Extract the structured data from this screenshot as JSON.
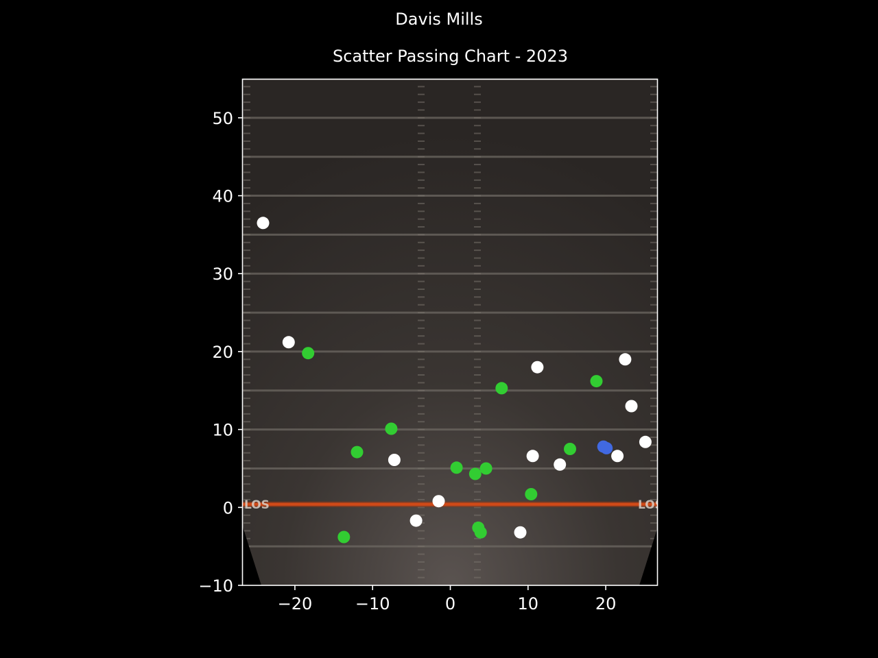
{
  "figure": {
    "suptitle": "Davis Mills",
    "title": "Scatter Passing Chart - 2023"
  },
  "chart_data": {
    "type": "scatter",
    "title": "Scatter Passing Chart - 2023",
    "suptitle": "Davis Mills",
    "xlabel": "",
    "ylabel": "",
    "xlim": [
      -26.7,
      26.7
    ],
    "ylim": [
      -10,
      55
    ],
    "xticks": [
      -20,
      -10,
      0,
      10,
      20
    ],
    "yticks": [
      -10,
      0,
      10,
      20,
      30,
      40,
      50
    ],
    "xtick_labels": [
      "−20",
      "−10",
      "0",
      "10",
      "20"
    ],
    "ytick_labels": [
      "−10",
      "0",
      "10",
      "20",
      "30",
      "40",
      "50"
    ],
    "grid": false,
    "legend": "none",
    "background": "football field image (yard lines every 5 yds, red line of scrimmage at 0, \"LOS\" markers at both sidelines)",
    "field_markers": [
      "LOS",
      "LOS"
    ],
    "colors": {
      "complete": "#32cd32",
      "incomplete": "#ffffff",
      "touchdown": "#4169e1",
      "los_line": "#c8380f",
      "background": "#000000"
    },
    "series": [
      {
        "key": "complete",
        "color": "#32cd32",
        "points": [
          [
            -18.3,
            19.8
          ],
          [
            -7.6,
            10.1
          ],
          [
            -12.0,
            7.1
          ],
          [
            -13.7,
            -3.8
          ],
          [
            0.8,
            5.1
          ],
          [
            3.2,
            4.3
          ],
          [
            4.6,
            5.0
          ],
          [
            6.6,
            15.3
          ],
          [
            3.6,
            -2.6
          ],
          [
            3.9,
            -3.2
          ],
          [
            10.4,
            1.7
          ],
          [
            15.4,
            7.5
          ],
          [
            18.8,
            16.2
          ]
        ]
      },
      {
        "key": "incomplete",
        "color": "#ffffff",
        "points": [
          [
            -24.1,
            36.5
          ],
          [
            -20.8,
            21.2
          ],
          [
            -7.2,
            6.1
          ],
          [
            -4.4,
            -1.7
          ],
          [
            -1.5,
            0.8
          ],
          [
            9.0,
            -3.2
          ],
          [
            10.6,
            6.6
          ],
          [
            11.2,
            18.0
          ],
          [
            14.1,
            5.5
          ],
          [
            21.5,
            6.6
          ],
          [
            22.5,
            19.0
          ],
          [
            23.3,
            13.0
          ],
          [
            25.1,
            8.4
          ]
        ]
      },
      {
        "key": "touchdown",
        "color": "#4169e1",
        "points": [
          [
            19.7,
            7.8
          ],
          [
            20.1,
            7.6
          ]
        ]
      }
    ]
  }
}
